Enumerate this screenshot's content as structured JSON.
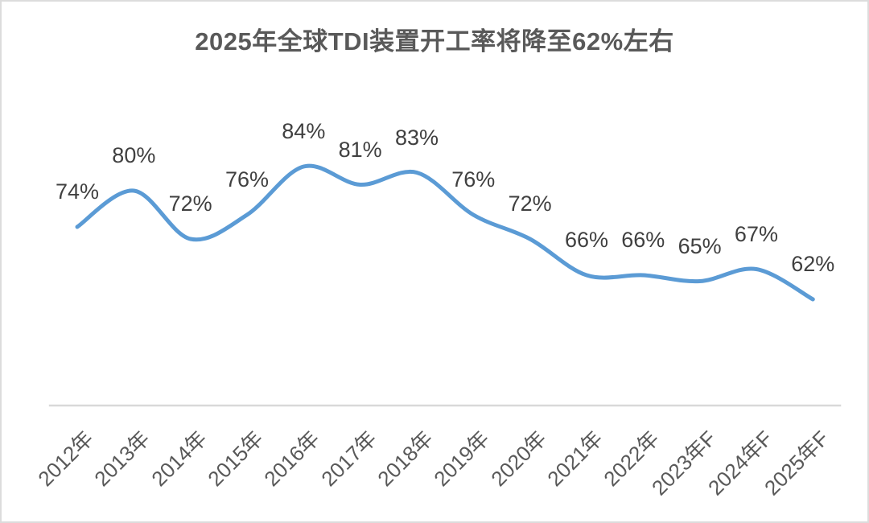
{
  "chart_data": {
    "type": "line",
    "title": "2025年全球TDI装置开工率将降至62%左右",
    "categories": [
      "2012年",
      "2013年",
      "2014年",
      "2015年",
      "2016年",
      "2017年",
      "2018年",
      "2019年",
      "2020年",
      "2021年",
      "2022年",
      "2023年F",
      "2024年F",
      "2025年F"
    ],
    "values": [
      74,
      80,
      72,
      76,
      84,
      81,
      83,
      76,
      72,
      66,
      66,
      65,
      67,
      62
    ],
    "data_labels": [
      "74%",
      "80%",
      "72%",
      "76%",
      "84%",
      "81%",
      "83%",
      "76%",
      "72%",
      "66%",
      "66%",
      "65%",
      "67%",
      "62%"
    ],
    "unit": "%",
    "xlabel": "",
    "ylabel": "",
    "smooth": true,
    "legend_position": "none",
    "gridlines": false,
    "y_axis_visible": false,
    "x_axis_label_rotation_deg": -45,
    "data_label_position": "above",
    "colors": {
      "line": "#5B9BD5",
      "axis_line": "#D9D9D9",
      "title_text": "#595959",
      "data_label_text": "#404040",
      "axis_label_text": "#595959",
      "background": "#FFFFFF",
      "border": "#DCDCDC"
    }
  }
}
